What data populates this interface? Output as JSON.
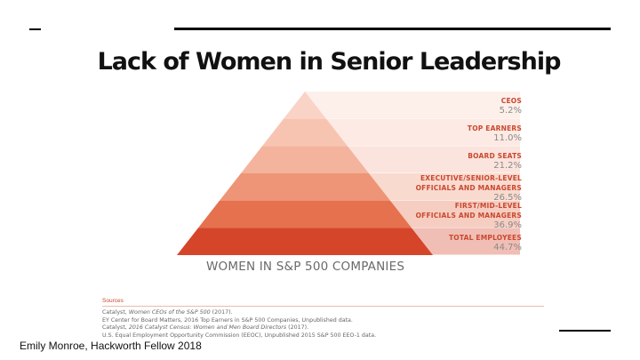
{
  "slide": {
    "title": "Lack of Women in Senior Leadership",
    "footer": "Emily Monroe, Hackworth Fellow 2018"
  },
  "chart_data": {
    "type": "pyramid",
    "title": "Women in S&P 500 Companies",
    "caption": "WOMEN IN S&P 500 COMPANIES",
    "levels": [
      {
        "label": "CEOS",
        "value": 5.2,
        "display": "5.2%",
        "color": "#f9d3c6"
      },
      {
        "label": "TOP EARNERS",
        "value": 11.0,
        "display": "11.0%",
        "color": "#f8c4b2"
      },
      {
        "label": "BOARD SEATS",
        "value": 21.2,
        "display": "21.2%",
        "color": "#f4b39d"
      },
      {
        "label": "EXECUTIVE/SENIOR-LEVEL OFFICIALS AND MANAGERS",
        "label_lines": [
          "EXECUTIVE/SENIOR-LEVEL",
          "OFFICIALS AND MANAGERS"
        ],
        "value": 26.5,
        "display": "26.5%",
        "color": "#ed9576"
      },
      {
        "label": "FIRST/MID-LEVEL OFFICIALS AND MANAGERS",
        "label_lines": [
          "FIRST/MID-LEVEL",
          "OFFICIALS AND MANAGERS"
        ],
        "value": 36.9,
        "display": "36.9%",
        "color": "#e5714e"
      },
      {
        "label": "TOTAL EMPLOYEES",
        "value": 44.7,
        "display": "44.7%",
        "color": "#d5452a"
      }
    ],
    "unit": "%"
  },
  "sources": {
    "heading": "Sources",
    "lines": [
      {
        "pre": "Catalyst, ",
        "em": "Women CEOs of the S&P 500",
        "post": " (2017)."
      },
      {
        "pre": "EY Center for Board Matters, 2016 Top Earners in S&P 500 Companies, Unpublished data.",
        "em": "",
        "post": ""
      },
      {
        "pre": "Catalyst, ",
        "em": "2016 Catalyst Census: Women and Men Board Directors",
        "post": " (2017)."
      },
      {
        "pre": "U.S. Equal Employment Opportunity Commission (EEOC), Unpublished 2015 S&P 500 EEO-1 data.",
        "em": "",
        "post": ""
      }
    ]
  }
}
